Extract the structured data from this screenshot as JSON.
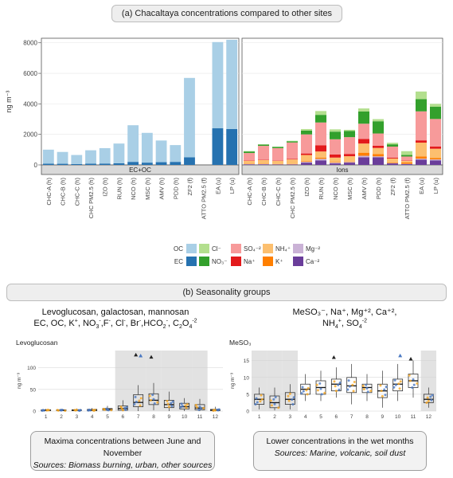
{
  "section_a": {
    "title": "(a) Chacaltaya concentrations compared to other sites"
  },
  "section_b": {
    "title": "(b) Seasonality groups"
  },
  "colors": {
    "OC": "#a9cfe6",
    "EC": "#2672b0",
    "Cl": "#b3df8e",
    "NO3": "#33a02c",
    "SO4": "#f79a9a",
    "Na": "#e31a1c",
    "NH4": "#fcbf6f",
    "K": "#ff7f00",
    "Mg": "#cab2d6",
    "Ca": "#6a3d9a",
    "box_orange": "#f5a623",
    "box_blue": "#4a78c2",
    "shade": "#e2e2e2"
  },
  "chart_data": [
    {
      "type": "bar",
      "stacked": true,
      "panel": "EC+OC",
      "ylabel": "ng m⁻³",
      "ylim": [
        0,
        8300
      ],
      "yticks": [
        0,
        2000,
        4000,
        6000,
        8000
      ],
      "categories": [
        "CHC-A (h)",
        "CHC-B (h)",
        "CHC-C (h)",
        "CHC PM2.5 (h)",
        "IZO (h)",
        "RUN (h)",
        "NCO (h)",
        "MSC (h)",
        "AMV (h)",
        "PDD (h)",
        "ZF2 (f)",
        "ATTO PM2.5 (f)",
        "EA (u)",
        "LP (u)"
      ],
      "series": [
        {
          "name": "EC",
          "values": [
            80,
            75,
            60,
            80,
            90,
            110,
            200,
            150,
            180,
            200,
            500,
            0,
            2400,
            2350
          ]
        },
        {
          "name": "OC",
          "values": [
            920,
            775,
            590,
            880,
            1010,
            1290,
            2400,
            1950,
            1420,
            1100,
            5200,
            0,
            5650,
            5850
          ]
        }
      ]
    },
    {
      "type": "bar",
      "stacked": true,
      "panel": "Ions",
      "categories": [
        "CHC-A (h)",
        "CHC-B (h)",
        "CHC-C (h)",
        "CHC PM2.5 (h)",
        "IZO (h)",
        "RUN (h)",
        "NCO (h)",
        "MSC (h)",
        "AMV (h)",
        "PDD (h)",
        "ZF2 (f)",
        "ATTO PM2.5 (f)",
        "EA (u)",
        "LP (u)"
      ],
      "series": [
        {
          "name": "Ca⁻²",
          "values": [
            40,
            40,
            30,
            30,
            150,
            300,
            100,
            150,
            500,
            500,
            100,
            50,
            350,
            300
          ]
        },
        {
          "name": "Mg⁺²",
          "values": [
            10,
            10,
            10,
            10,
            50,
            100,
            50,
            40,
            100,
            60,
            20,
            20,
            60,
            60
          ]
        },
        {
          "name": "K⁺",
          "values": [
            20,
            20,
            20,
            20,
            50,
            80,
            30,
            30,
            200,
            150,
            50,
            100,
            150,
            100
          ]
        },
        {
          "name": "NH₄⁺",
          "values": [
            200,
            250,
            200,
            300,
            400,
            400,
            300,
            350,
            600,
            400,
            250,
            100,
            900,
            600
          ]
        },
        {
          "name": "Na⁺",
          "values": [
            30,
            30,
            20,
            30,
            100,
            400,
            200,
            150,
            300,
            150,
            50,
            30,
            150,
            150
          ]
        },
        {
          "name": "SO₄⁻²",
          "values": [
            480,
            900,
            820,
            1080,
            1250,
            1500,
            1000,
            1100,
            1000,
            800,
            730,
            250,
            1900,
            1800
          ]
        },
        {
          "name": "NO₃⁻",
          "values": [
            100,
            80,
            80,
            80,
            250,
            500,
            500,
            400,
            800,
            800,
            150,
            100,
            800,
            800
          ]
        },
        {
          "name": "Cl⁻",
          "values": [
            30,
            20,
            20,
            30,
            100,
            250,
            150,
            80,
            200,
            140,
            100,
            250,
            500,
            190
          ]
        }
      ]
    },
    {
      "type": "box",
      "title": "Levoglucosan",
      "ylabel": "ng m⁻³",
      "ylim": [
        0,
        140
      ],
      "yticks": [
        0,
        50,
        100
      ],
      "categories": [
        "1",
        "2",
        "3",
        "4",
        "5",
        "6",
        "7",
        "8",
        "9",
        "10",
        "11",
        "12"
      ],
      "shaded_months": [
        6,
        7,
        8,
        9,
        10,
        11
      ],
      "boxes": [
        {
          "q1": 1,
          "median": 2,
          "q3": 3,
          "whisker_low": 0,
          "whisker_high": 5
        },
        {
          "q1": 1,
          "median": 2,
          "q3": 3,
          "whisker_low": 0,
          "whisker_high": 5
        },
        {
          "q1": 1,
          "median": 2,
          "q3": 3,
          "whisker_low": 0,
          "whisker_high": 6
        },
        {
          "q1": 1,
          "median": 2,
          "q3": 4,
          "whisker_low": 0,
          "whisker_high": 7
        },
        {
          "q1": 2,
          "median": 4,
          "q3": 6,
          "whisker_low": 0,
          "whisker_high": 12
        },
        {
          "q1": 2,
          "median": 6,
          "q3": 12,
          "whisker_low": 0,
          "whisker_high": 25
        },
        {
          "q1": 10,
          "median": 20,
          "q3": 38,
          "whisker_low": 0,
          "whisker_high": 60
        },
        {
          "q1": 15,
          "median": 25,
          "q3": 40,
          "whisker_low": 2,
          "whisker_high": 65
        },
        {
          "q1": 8,
          "median": 15,
          "q3": 25,
          "whisker_low": 0,
          "whisker_high": 45
        },
        {
          "q1": 5,
          "median": 10,
          "q3": 18,
          "whisker_low": 0,
          "whisker_high": 30
        },
        {
          "q1": 3,
          "median": 7,
          "q3": 15,
          "whisker_low": 0,
          "whisker_high": 28
        },
        {
          "q1": 1,
          "median": 2,
          "q3": 4,
          "whisker_low": 0,
          "whisker_high": 10
        }
      ],
      "outliers": [
        {
          "month": 7,
          "y": 130
        },
        {
          "month": 7,
          "y": 128
        },
        {
          "month": 8,
          "y": 125
        }
      ]
    },
    {
      "type": "box",
      "title": "MeSO₃",
      "ylabel": "ng m⁻³",
      "ylim": [
        0,
        18
      ],
      "yticks": [
        0,
        5,
        10,
        15
      ],
      "categories": [
        "1",
        "2",
        "3",
        "4",
        "5",
        "6",
        "7",
        "8",
        "9",
        "10",
        "11",
        "12"
      ],
      "shaded_months": [
        1,
        2,
        3,
        12
      ],
      "boxes": [
        {
          "q1": 2,
          "median": 3.5,
          "q3": 5,
          "whisker_low": 0.5,
          "whisker_high": 7
        },
        {
          "q1": 1,
          "median": 2.5,
          "q3": 4.5,
          "whisker_low": 0.2,
          "whisker_high": 7
        },
        {
          "q1": 2,
          "median": 3.5,
          "q3": 5.5,
          "whisker_low": 0.5,
          "whisker_high": 8
        },
        {
          "q1": 5,
          "median": 6.5,
          "q3": 8,
          "whisker_low": 3,
          "whisker_high": 11
        },
        {
          "q1": 5,
          "median": 7,
          "q3": 9,
          "whisker_low": 3,
          "whisker_high": 12
        },
        {
          "q1": 6,
          "median": 8,
          "q3": 9.5,
          "whisker_low": 4,
          "whisker_high": 13
        },
        {
          "q1": 5.5,
          "median": 7.5,
          "q3": 10,
          "whisker_low": 2,
          "whisker_high": 14
        },
        {
          "q1": 5.5,
          "median": 7,
          "q3": 8,
          "whisker_low": 3,
          "whisker_high": 11
        },
        {
          "q1": 4,
          "median": 6,
          "q3": 8,
          "whisker_low": 1,
          "whisker_high": 12
        },
        {
          "q1": 6,
          "median": 8,
          "q3": 9.5,
          "whisker_low": 3,
          "whisker_high": 14
        },
        {
          "q1": 7,
          "median": 9,
          "q3": 11,
          "whisker_low": 4,
          "whisker_high": 15
        },
        {
          "q1": 2.5,
          "median": 3.5,
          "q3": 5,
          "whisker_low": 1,
          "whisker_high": 7
        }
      ],
      "outliers": [
        {
          "month": 6,
          "y": 16
        },
        {
          "month": 10,
          "y": 16.5
        },
        {
          "month": 11,
          "y": 15.5
        }
      ]
    }
  ],
  "groups": [
    {
      "line1": "Levoglucosan, galactosan, mannosan"
    },
    {
      "line1": "MeSO₃⁻, Na⁺, Mg⁺², Ca⁺²,"
    }
  ],
  "legend": {
    "labels": {
      "OC": "OC",
      "EC": "EC",
      "Cl": "Cl⁻",
      "NO3": "NO₃⁻",
      "SO4": "SO₄⁻²",
      "Na": "Na⁺",
      "NH4": "NH₄⁺",
      "K": "K⁺",
      "Mg": "Mg⁻²",
      "Ca": "Ca⁻²"
    }
  },
  "summaries": [
    {
      "main": "Maxima concentrations between June and November",
      "sources": "Sources: Biomass burning, urban, other sources"
    },
    {
      "main": "Lower concentrations in the wet months",
      "sources": "Sources: Marine, volcanic, soil dust"
    }
  ]
}
